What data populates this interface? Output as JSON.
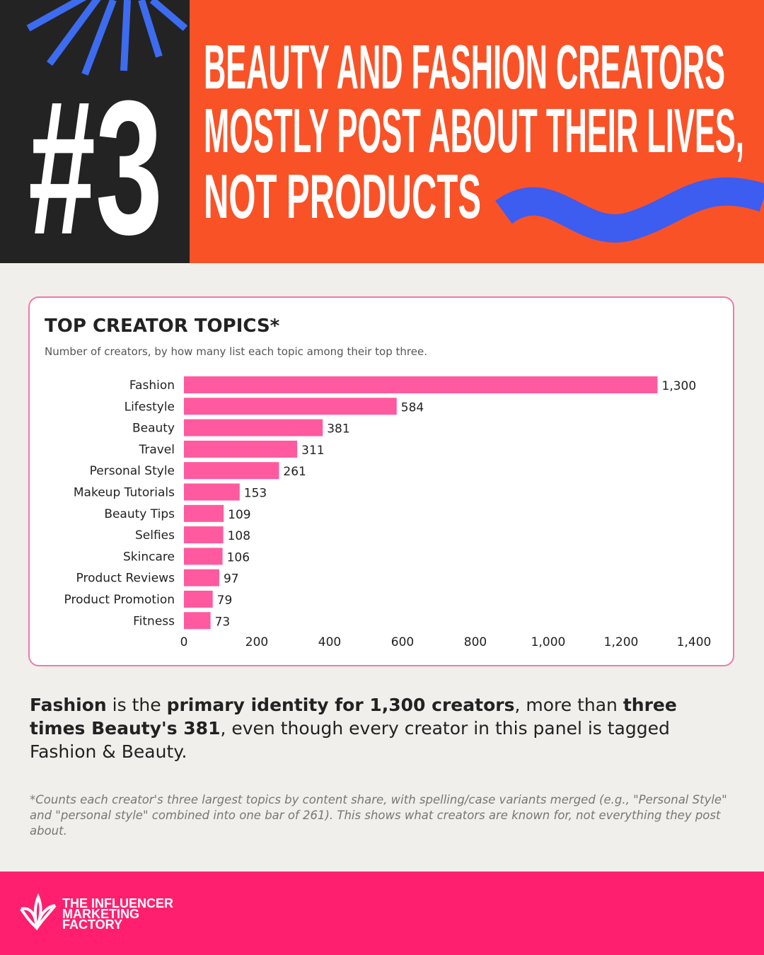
{
  "header": {
    "number": "#3",
    "title_lines": [
      "BEAUTY AND FASHION CREATORS",
      "MOSTLY POST ABOUT THEIR LIVES,",
      "NOT PRODUCTS"
    ]
  },
  "chart_data": {
    "type": "bar",
    "orientation": "horizontal",
    "title": "TOP CREATOR TOPICS*",
    "subtitle": "Number of creators, by how many list each topic among their top three.",
    "categories": [
      "Fashion",
      "Lifestyle",
      "Beauty",
      "Travel",
      "Personal Style",
      "Makeup Tutorials",
      "Beauty Tips",
      "Selfies",
      "Skincare",
      "Product Reviews",
      "Product Promotion",
      "Fitness"
    ],
    "values": [
      1300,
      584,
      381,
      311,
      261,
      153,
      109,
      108,
      106,
      97,
      79,
      73
    ],
    "value_labels": [
      "1,300",
      "584",
      "381",
      "311",
      "261",
      "153",
      "109",
      "108",
      "106",
      "97",
      "79",
      "73"
    ],
    "color": "#ff5a9f",
    "xlim": [
      0,
      1400
    ],
    "xticks": [
      0,
      200,
      400,
      600,
      800,
      {
        "value": 1000,
        "label": "1,000"
      },
      {
        "value": 1200,
        "label": "1,200"
      },
      {
        "value": 1400,
        "label": "1,400"
      }
    ],
    "grid": false
  },
  "summary": [
    {
      "text": "Fashion",
      "bold": true
    },
    {
      "text": " is the ",
      "bold": false
    },
    {
      "text": "primary identity for 1,300 creators",
      "bold": true
    },
    {
      "text": ", more than ",
      "bold": false
    },
    {
      "text": "three times Beauty's 381",
      "bold": true
    },
    {
      "text": ", even though every creator in this panel is tagged Fashion & Beauty.",
      "bold": false
    }
  ],
  "footnote": "*Counts each creator's three largest topics by content share, with spelling/case variants merged (e.g., \"Personal Style\" and \"personal style\" combined into one bar of 261). This shows what creators are known for, not everything they post about.",
  "brand": {
    "lines": [
      "THE INFLUENCER",
      "MARKETING",
      "FACTORY"
    ]
  }
}
